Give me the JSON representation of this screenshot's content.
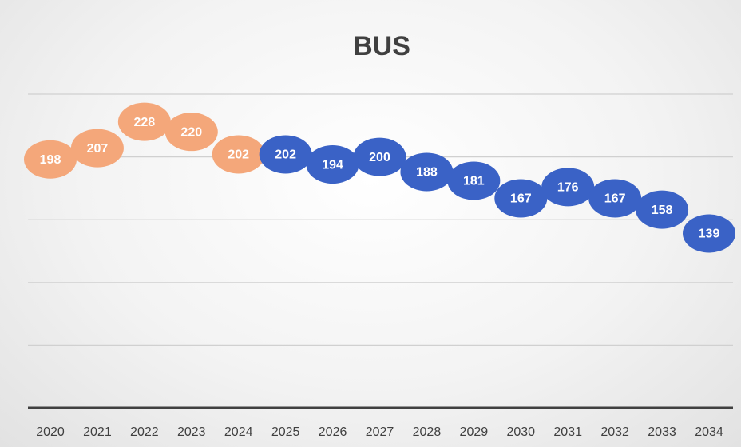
{
  "chart_data": {
    "type": "line",
    "title": "BUS",
    "categories": [
      "2020",
      "2021",
      "2022",
      "2023",
      "2024",
      "2025",
      "2026",
      "2027",
      "2028",
      "2029",
      "2030",
      "2031",
      "2032",
      "2033",
      "2034"
    ],
    "series": [
      {
        "color": "#f4a77a",
        "values": [
          198,
          207,
          228,
          220,
          202,
          null,
          null,
          null,
          null,
          null,
          null,
          null,
          null,
          null,
          null
        ]
      },
      {
        "color": "#3a62c6",
        "values": [
          null,
          null,
          null,
          null,
          null,
          202,
          194,
          200,
          188,
          181,
          167,
          176,
          167,
          158,
          139
        ]
      }
    ],
    "ylim": [
      0,
      250
    ],
    "yticks": [
      0,
      50,
      100,
      150,
      200,
      250
    ],
    "grid": true
  }
}
